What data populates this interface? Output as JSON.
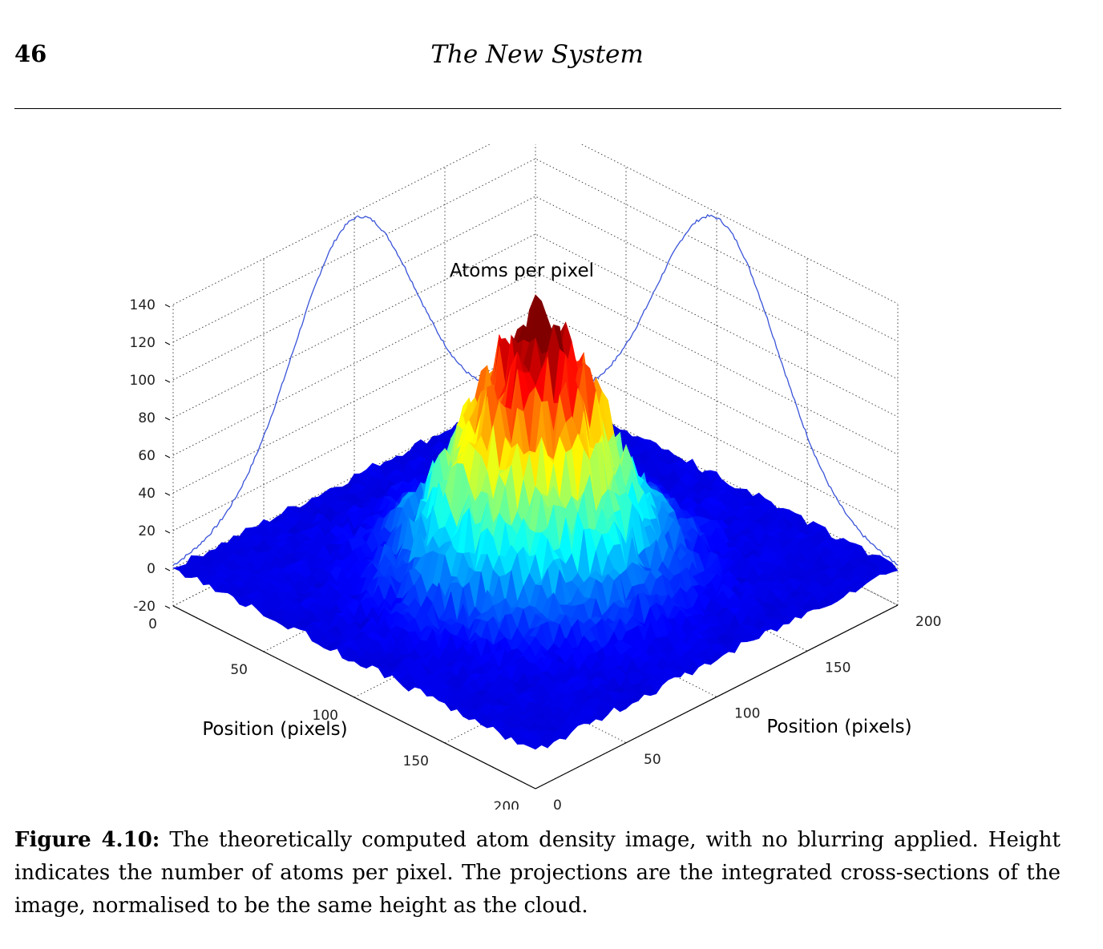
{
  "header": {
    "page_number": "46",
    "running_title": "The New System"
  },
  "figure": {
    "caption_label": "Figure 4.10:",
    "caption_text": "The theoretically computed atom density image, with no blurring applied. Height indicates the number of atoms per pixel. The projections are the integrated cross-sections of the image, normalised to be the same height as the cloud."
  },
  "chart_data": {
    "type": "surface3d",
    "zlabel": "Atoms per pixel",
    "xlabel": "Position (pixels)",
    "ylabel": "Position (pixels)",
    "z_ticks": [
      "140",
      "120",
      "100",
      "80",
      "60",
      "40",
      "20",
      "0",
      "-20"
    ],
    "x_ticks": [
      "0",
      "50",
      "100",
      "150",
      "200"
    ],
    "y_ticks": [
      "0",
      "50",
      "100",
      "150",
      "200"
    ],
    "xlim": [
      0,
      200
    ],
    "ylim": [
      0,
      200
    ],
    "zlim": [
      -20,
      140
    ],
    "surface": {
      "model": "2D Gaussian atom cloud with noise",
      "center": [
        100,
        100
      ],
      "peak_atoms_per_pixel": 125,
      "sigma_pixels": 27,
      "colormap": "jet"
    },
    "projections": {
      "description": "integrated cross-sections normalised to cloud height",
      "peak_height": 137,
      "color": "#3a53d8"
    },
    "grid": true
  }
}
